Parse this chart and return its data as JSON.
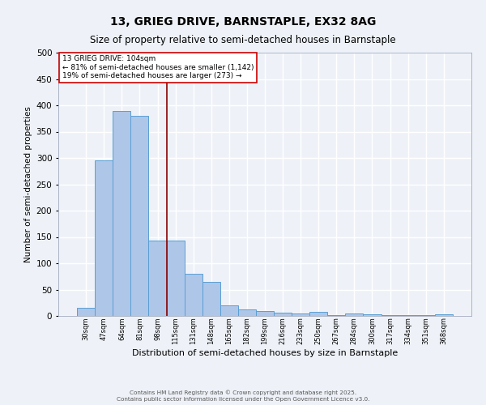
{
  "title1": "13, GRIEG DRIVE, BARNSTAPLE, EX32 8AG",
  "title2": "Size of property relative to semi-detached houses in Barnstaple",
  "xlabel": "Distribution of semi-detached houses by size in Barnstaple",
  "ylabel": "Number of semi-detached properties",
  "categories": [
    "30sqm",
    "47sqm",
    "64sqm",
    "81sqm",
    "98sqm",
    "115sqm",
    "131sqm",
    "148sqm",
    "165sqm",
    "182sqm",
    "199sqm",
    "216sqm",
    "233sqm",
    "250sqm",
    "267sqm",
    "284sqm",
    "300sqm",
    "317sqm",
    "334sqm",
    "351sqm",
    "368sqm"
  ],
  "values": [
    15,
    295,
    390,
    380,
    143,
    143,
    80,
    65,
    20,
    12,
    10,
    6,
    5,
    7,
    1,
    5,
    3,
    1,
    1,
    1,
    3
  ],
  "bar_color": "#aec6e8",
  "bar_edge_color": "#5a9fd4",
  "vline_x": 4.5,
  "vline_color": "#8b0000",
  "annotation_title": "13 GRIEG DRIVE: 104sqm",
  "annotation_line1": "← 81% of semi-detached houses are smaller (1,142)",
  "annotation_line2": "19% of semi-detached houses are larger (273) →",
  "annotation_box_color": "#ffffff",
  "annotation_edge_color": "#cc0000",
  "ylim": [
    0,
    500
  ],
  "yticks": [
    0,
    50,
    100,
    150,
    200,
    250,
    300,
    350,
    400,
    450,
    500
  ],
  "footer1": "Contains HM Land Registry data © Crown copyright and database right 2025.",
  "footer2": "Contains public sector information licensed under the Open Government Licence v3.0.",
  "bg_color": "#eef2f8",
  "grid_color": "#ffffff",
  "title_fontsize": 10,
  "subtitle_fontsize": 8.5
}
